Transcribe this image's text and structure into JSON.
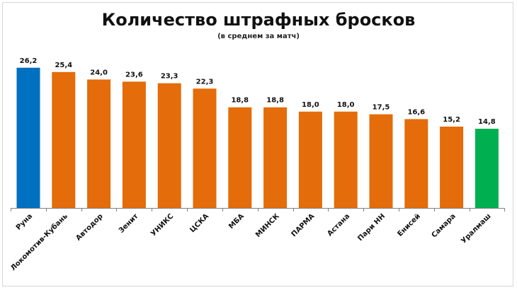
{
  "chart_data": {
    "type": "bar",
    "title": "Количество штрафных бросков",
    "subtitle": "(в среднем за матч)",
    "categories": [
      "Руна",
      "Локомотив-Кубань",
      "Автодор",
      "Зенит",
      "УНИКС",
      "ЦСКА",
      "МБА",
      "МИНСК",
      "ПАРМА",
      "Астана",
      "Пари НН",
      "Енисей",
      "Самара",
      "Уралмаш"
    ],
    "values": [
      26.2,
      25.4,
      24.0,
      23.6,
      23.3,
      22.3,
      18.8,
      18.8,
      18.0,
      18.0,
      17.5,
      16.6,
      15.2,
      14.8
    ],
    "value_labels": [
      "26,2",
      "25,4",
      "24,0",
      "23,6",
      "23,3",
      "22,3",
      "18,8",
      "18,8",
      "18,0",
      "18,0",
      "17,5",
      "16,6",
      "15,2",
      "14,8"
    ],
    "ylim": [
      0,
      30
    ],
    "grid": false,
    "legend": "none",
    "colors": {
      "default": "#E46C0A",
      "highlight_max": "#0070C0",
      "highlight_min": "#00B050",
      "axis": "#808080"
    },
    "bar_colors": [
      "#0070C0",
      "#E46C0A",
      "#E46C0A",
      "#E46C0A",
      "#E46C0A",
      "#E46C0A",
      "#E46C0A",
      "#E46C0A",
      "#E46C0A",
      "#E46C0A",
      "#E46C0A",
      "#E46C0A",
      "#E46C0A",
      "#00B050"
    ]
  }
}
